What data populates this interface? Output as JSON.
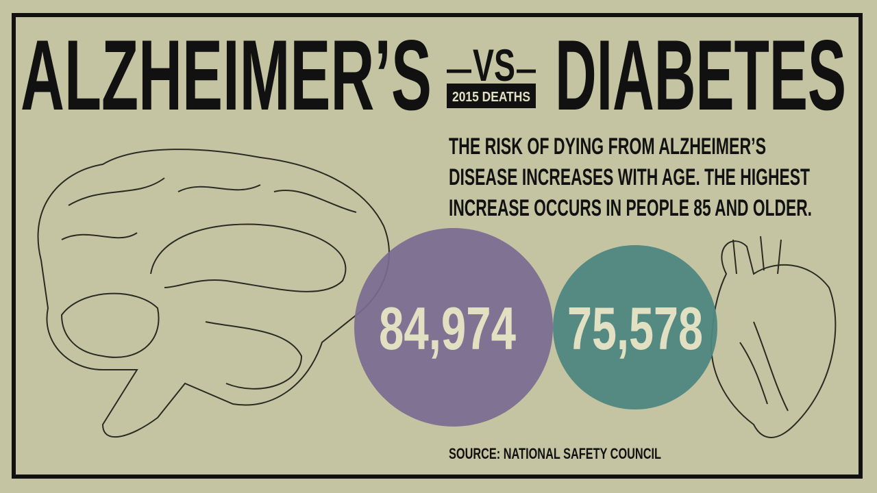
{
  "header": {
    "left": "ALZHEIMER’S",
    "vs": "VS",
    "badge": "2015 DEATHS",
    "right": "DIABETES"
  },
  "description": [
    "THE RISK OF DYING FROM ALZHEIMER’S",
    "DISEASE INCREASES WITH AGE. THE HIGHEST",
    "INCREASE OCCURS IN PEOPLE 85 AND OLDER."
  ],
  "stats": [
    "84,974",
    "75,578"
  ],
  "source": "SOURCE: NATIONAL SAFETY COUNCIL"
}
